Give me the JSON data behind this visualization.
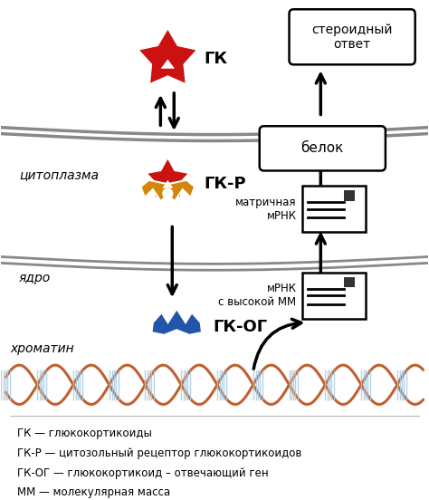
{
  "bg_color": "#ffffff",
  "membrane_color": "#888888",
  "label_cytoplasm": "цитоплазма",
  "label_nucleus": "ядро",
  "label_chromatin": "хроматин",
  "label_gk": "ГК",
  "label_gkr": "ГК-Р",
  "label_gkog": "ГК-ОГ",
  "label_steroid": "стероидный\nответ",
  "label_protein": "белок",
  "label_mrna_matrix": "матричная\nмРНК",
  "label_mrna_high": "мРНК\nс высокой ММ",
  "legend_lines": [
    "ГК — глюкокортикоиды",
    "ГК-Р — цитозольный рецептор глюкокортикоидов",
    "ГК-ОГ — глюкокортикоид – отвечающий ген",
    "ММ — молекулярная масса"
  ],
  "red_color": "#cc1111",
  "gold_color": "#d4860a",
  "blue_color": "#2255aa",
  "dna_brown": "#c06030",
  "dna_blue": "#aacce0"
}
